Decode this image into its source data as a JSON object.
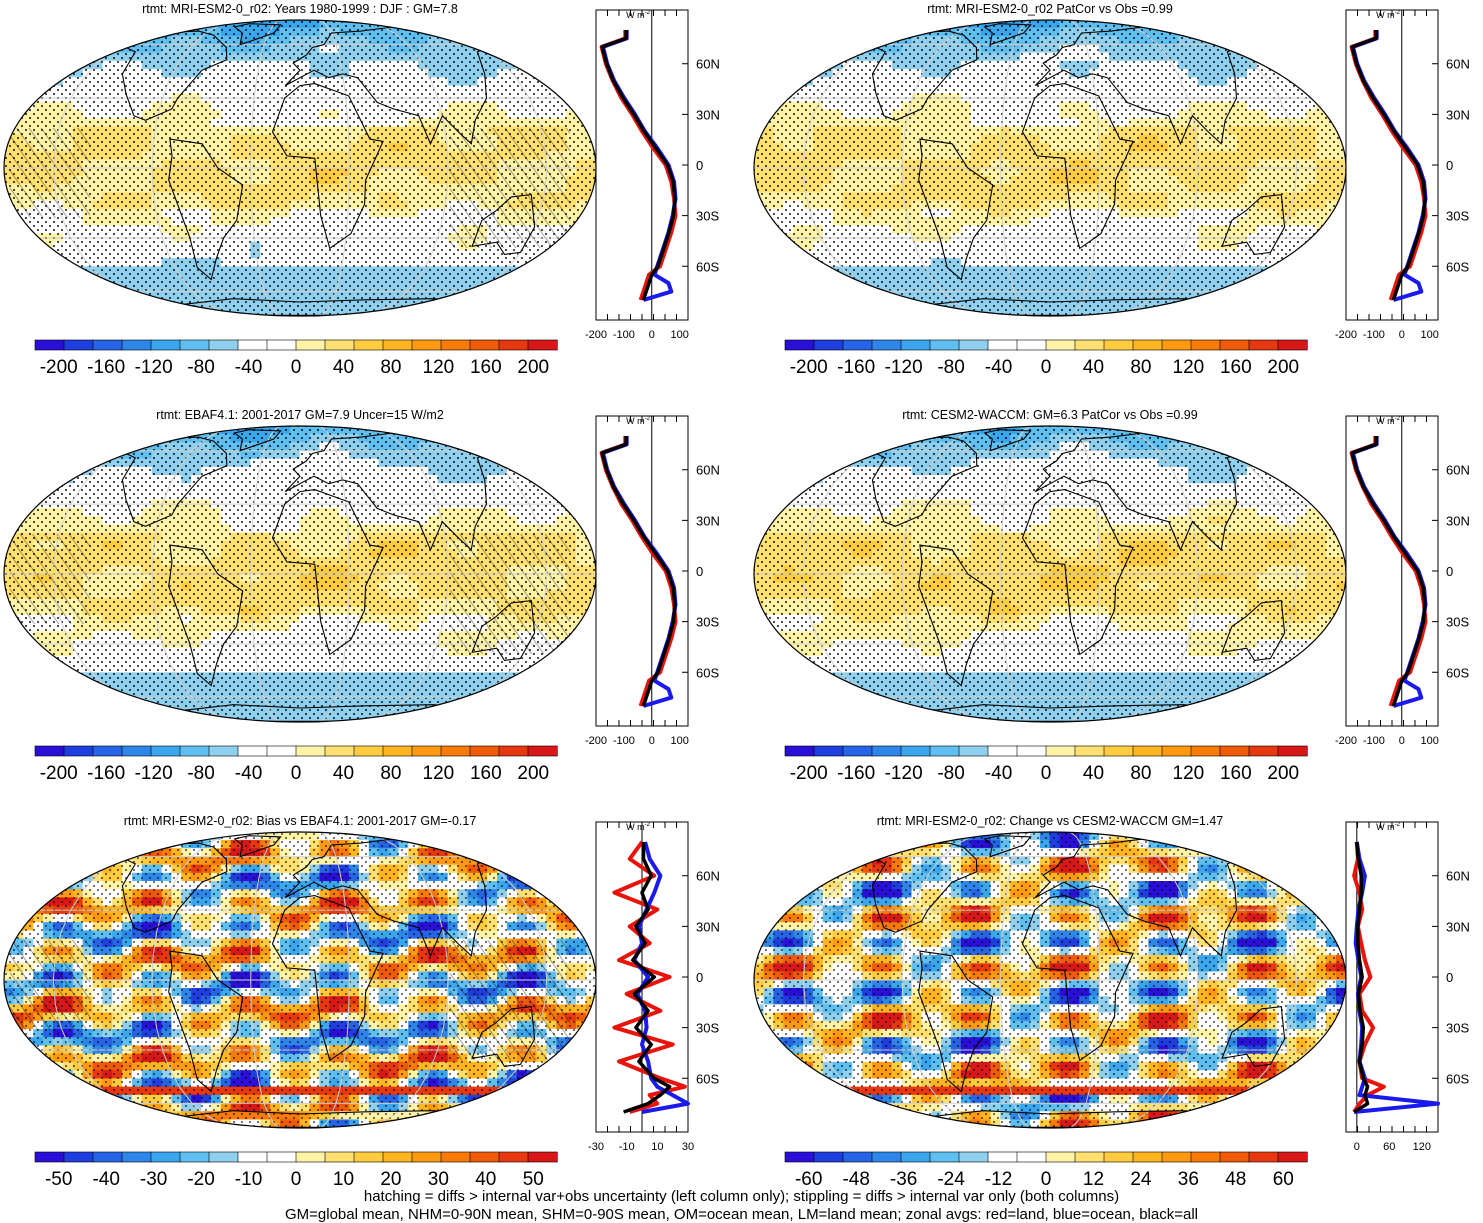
{
  "footer": {
    "line1": "hatching = diffs > internal var+obs uncertainty (left column only); stippling = diffs > internal var only (both columns)",
    "line2": "GM=global mean, NHM=0-90N mean, SHM=0-90S mean, OM=ocean mean, LM=land mean; zonal avgs: red=land, blue=ocean, black=all"
  },
  "colors": {
    "land_line": "#e8140c",
    "ocean_line": "#1a1aee",
    "all_line": "#000000"
  },
  "chart_data": [
    {
      "type": "heatmap",
      "title": "rtmt: MRI-ESM2-0_r02: Years 1980-1999 : DJF : GM=7.8",
      "colorbar": {
        "min": -220,
        "max": 220,
        "ticks": [
          -200,
          -160,
          -120,
          -80,
          -40,
          0,
          40,
          80,
          120,
          160,
          200
        ],
        "colors": [
          "#2a0fd8",
          "#1f3ee0",
          "#2564e6",
          "#2f86ea",
          "#3aa6ee",
          "#5ebff0",
          "#8ed0ee",
          "#ffffff",
          "#ffffff",
          "#fff3a8",
          "#ffe070",
          "#ffcc40",
          "#ffb420",
          "#ff9a10",
          "#f87a08",
          "#f05a08",
          "#e83810",
          "#d81818"
        ]
      },
      "map_scale": 220,
      "zonal": {
        "unit_label": "W m-2",
        "xlim": [
          -200,
          130
        ],
        "xticks": [
          "-200",
          "-100",
          "0",
          "100"
        ],
        "lat_ticks": [
          "60N",
          "30N",
          "0",
          "30S",
          "60S"
        ],
        "lat": [
          80,
          75,
          70,
          60,
          50,
          40,
          30,
          20,
          10,
          0,
          -10,
          -20,
          -30,
          -40,
          -50,
          -60,
          -65,
          -70,
          -75,
          -80
        ],
        "land": [
          -95,
          -95,
          -180,
          -165,
          -140,
          -110,
          -70,
          -35,
          5,
          50,
          70,
          80,
          85,
          70,
          50,
          30,
          -10,
          -20,
          -30,
          -40
        ],
        "ocean": [
          -90,
          -90,
          -175,
          -160,
          -135,
          -100,
          -60,
          -25,
          20,
          60,
          80,
          85,
          75,
          60,
          40,
          20,
          10,
          60,
          70,
          -30
        ],
        "all": [
          -92,
          -92,
          -178,
          -162,
          -138,
          -104,
          -64,
          -28,
          15,
          57,
          77,
          83,
          78,
          62,
          42,
          22,
          0,
          -10,
          -20,
          -30
        ]
      }
    },
    {
      "type": "heatmap",
      "title": "rtmt: MRI-ESM2-0_r02 PatCor vs Obs =0.99",
      "colorbar": {
        "min": -220,
        "max": 220,
        "ticks": [
          -200,
          -160,
          -120,
          -80,
          -40,
          0,
          40,
          80,
          120,
          160,
          200
        ],
        "colors": [
          "#2a0fd8",
          "#1f3ee0",
          "#2564e6",
          "#2f86ea",
          "#3aa6ee",
          "#5ebff0",
          "#8ed0ee",
          "#ffffff",
          "#ffffff",
          "#fff3a8",
          "#ffe070",
          "#ffcc40",
          "#ffb420",
          "#ff9a10",
          "#f87a08",
          "#f05a08",
          "#e83810",
          "#d81818"
        ]
      },
      "map_scale": 220,
      "zonal": {
        "unit_label": "W m-2",
        "xlim": [
          -200,
          130
        ],
        "xticks": [
          "-200",
          "-100",
          "0",
          "100"
        ],
        "lat_ticks": [
          "60N",
          "30N",
          "0",
          "30S",
          "60S"
        ],
        "lat": [
          80,
          75,
          70,
          60,
          50,
          40,
          30,
          20,
          10,
          0,
          -10,
          -20,
          -30,
          -40,
          -50,
          -60,
          -65,
          -70,
          -75,
          -80
        ],
        "land": [
          -95,
          -95,
          -180,
          -165,
          -140,
          -110,
          -70,
          -35,
          5,
          50,
          70,
          80,
          85,
          70,
          50,
          30,
          -10,
          -20,
          -30,
          -40
        ],
        "ocean": [
          -90,
          -90,
          -175,
          -160,
          -135,
          -100,
          -60,
          -25,
          20,
          60,
          80,
          85,
          75,
          60,
          40,
          20,
          10,
          60,
          70,
          -30
        ],
        "all": [
          -92,
          -92,
          -178,
          -162,
          -138,
          -104,
          -64,
          -28,
          15,
          57,
          77,
          83,
          78,
          62,
          42,
          22,
          0,
          -10,
          -20,
          -30
        ]
      }
    },
    {
      "type": "heatmap",
      "title": "rtmt: EBAF4.1: 2001-2017 GM=7.9 Uncer=15 W/m2",
      "colorbar": {
        "min": -220,
        "max": 220,
        "ticks": [
          -200,
          -160,
          -120,
          -80,
          -40,
          0,
          40,
          80,
          120,
          160,
          200
        ],
        "colors": [
          "#2a0fd8",
          "#1f3ee0",
          "#2564e6",
          "#2f86ea",
          "#3aa6ee",
          "#5ebff0",
          "#8ed0ee",
          "#ffffff",
          "#ffffff",
          "#fff3a8",
          "#ffe070",
          "#ffcc40",
          "#ffb420",
          "#ff9a10",
          "#f87a08",
          "#f05a08",
          "#e83810",
          "#d81818"
        ]
      },
      "map_scale": 220,
      "zonal": {
        "unit_label": "W m-2",
        "xlim": [
          -200,
          130
        ],
        "xticks": [
          "-200",
          "-100",
          "0",
          "100"
        ],
        "lat_ticks": [
          "60N",
          "30N",
          "0",
          "30S",
          "60S"
        ],
        "lat": [
          80,
          75,
          70,
          60,
          50,
          40,
          30,
          20,
          10,
          0,
          -10,
          -20,
          -30,
          -40,
          -50,
          -60,
          -65,
          -70,
          -75,
          -80
        ],
        "land": [
          -95,
          -95,
          -180,
          -165,
          -140,
          -110,
          -70,
          -35,
          5,
          50,
          70,
          80,
          85,
          70,
          50,
          30,
          -10,
          -20,
          -30,
          -40
        ],
        "ocean": [
          -90,
          -90,
          -175,
          -160,
          -135,
          -100,
          -60,
          -25,
          20,
          60,
          80,
          85,
          75,
          60,
          40,
          20,
          10,
          60,
          70,
          -30
        ],
        "all": [
          -92,
          -92,
          -178,
          -162,
          -138,
          -104,
          -64,
          -28,
          15,
          57,
          77,
          83,
          78,
          62,
          42,
          22,
          0,
          -10,
          -20,
          -30
        ]
      }
    },
    {
      "type": "heatmap",
      "title": "rtmt: CESM2-WACCM: GM=6.3 PatCor vs Obs =0.99",
      "colorbar": {
        "min": -220,
        "max": 220,
        "ticks": [
          -200,
          -160,
          -120,
          -80,
          -40,
          0,
          40,
          80,
          120,
          160,
          200
        ],
        "colors": [
          "#2a0fd8",
          "#1f3ee0",
          "#2564e6",
          "#2f86ea",
          "#3aa6ee",
          "#5ebff0",
          "#8ed0ee",
          "#ffffff",
          "#ffffff",
          "#fff3a8",
          "#ffe070",
          "#ffcc40",
          "#ffb420",
          "#ff9a10",
          "#f87a08",
          "#f05a08",
          "#e83810",
          "#d81818"
        ]
      },
      "map_scale": 220,
      "zonal": {
        "unit_label": "W m-2",
        "xlim": [
          -200,
          130
        ],
        "xticks": [
          "-200",
          "-100",
          "0",
          "100"
        ],
        "lat_ticks": [
          "60N",
          "30N",
          "0",
          "30S",
          "60S"
        ],
        "lat": [
          80,
          75,
          70,
          60,
          50,
          40,
          30,
          20,
          10,
          0,
          -10,
          -20,
          -30,
          -40,
          -50,
          -60,
          -65,
          -70,
          -75,
          -80
        ],
        "land": [
          -95,
          -95,
          -180,
          -165,
          -140,
          -110,
          -70,
          -35,
          5,
          50,
          70,
          80,
          85,
          70,
          50,
          30,
          -10,
          -20,
          -30,
          -40
        ],
        "ocean": [
          -90,
          -90,
          -175,
          -160,
          -135,
          -100,
          -60,
          -25,
          20,
          60,
          80,
          85,
          75,
          60,
          40,
          20,
          10,
          60,
          70,
          -30
        ],
        "all": [
          -92,
          -92,
          -178,
          -162,
          -138,
          -104,
          -64,
          -28,
          15,
          57,
          77,
          83,
          78,
          62,
          42,
          22,
          0,
          -10,
          -20,
          -30
        ]
      }
    },
    {
      "type": "heatmap",
      "title": "rtmt: MRI-ESM2-0_r02: Bias vs EBAF4.1: 2001-2017 GM=-0.17",
      "colorbar": {
        "min": -55,
        "max": 55,
        "ticks": [
          -50,
          -40,
          -30,
          -20,
          -10,
          0,
          10,
          20,
          30,
          40,
          50
        ],
        "colors": [
          "#2a0fd8",
          "#1f3ee0",
          "#2564e6",
          "#2f86ea",
          "#3aa6ee",
          "#5ebff0",
          "#8ed0ee",
          "#ffffff",
          "#ffffff",
          "#fff3a8",
          "#ffe070",
          "#ffcc40",
          "#ffb420",
          "#ff9a10",
          "#f87a08",
          "#f05a08",
          "#e83810",
          "#d81818"
        ]
      },
      "map_scale": 40,
      "zonal": {
        "unit_label": "W m-2",
        "xlim": [
          -30,
          30
        ],
        "xticks": [
          "-30",
          "-10",
          "10",
          "30"
        ],
        "lat_ticks": [
          "60N",
          "30N",
          "0",
          "30S",
          "60S"
        ],
        "lat": [
          80,
          70,
          60,
          50,
          40,
          30,
          20,
          10,
          0,
          -10,
          -20,
          -30,
          -40,
          -50,
          -60,
          -65,
          -70,
          -75,
          -80
        ],
        "land": [
          0,
          -8,
          8,
          -18,
          10,
          -8,
          5,
          -15,
          18,
          -10,
          12,
          -18,
          20,
          -15,
          12,
          28,
          5,
          10,
          -8
        ],
        "ocean": [
          2,
          5,
          12,
          8,
          3,
          -2,
          0,
          -5,
          4,
          -3,
          2,
          3,
          0,
          4,
          6,
          10,
          20,
          30,
          0
        ],
        "all": [
          1,
          1,
          6,
          0,
          4,
          -4,
          2,
          -6,
          8,
          -5,
          4,
          -4,
          6,
          -2,
          8,
          18,
          12,
          4,
          -12
        ]
      }
    },
    {
      "type": "heatmap",
      "title": "rtmt: MRI-ESM2-0_r02: Change vs CESM2-WACCM GM=1.47",
      "colorbar": {
        "min": -66,
        "max": 66,
        "ticks": [
          -60,
          -48,
          -36,
          -24,
          -12,
          0,
          12,
          24,
          36,
          48,
          60
        ],
        "colors": [
          "#2a0fd8",
          "#1f3ee0",
          "#2564e6",
          "#2f86ea",
          "#3aa6ee",
          "#5ebff0",
          "#8ed0ee",
          "#ffffff",
          "#ffffff",
          "#fff3a8",
          "#ffe070",
          "#ffcc40",
          "#ffb420",
          "#ff9a10",
          "#f87a08",
          "#f05a08",
          "#e83810",
          "#d81818"
        ]
      },
      "map_scale": 45,
      "zonal": {
        "unit_label": "W m-2",
        "xlim": [
          -20,
          150
        ],
        "xticks": [
          "0",
          "60",
          "120"
        ],
        "lat_ticks": [
          "60N",
          "30N",
          "0",
          "30S",
          "60S"
        ],
        "lat": [
          80,
          70,
          60,
          50,
          40,
          30,
          20,
          10,
          0,
          -10,
          -20,
          -30,
          -40,
          -50,
          -60,
          -65,
          -70,
          -75,
          -80
        ],
        "land": [
          0,
          2,
          -5,
          5,
          10,
          2,
          8,
          15,
          25,
          5,
          10,
          30,
          15,
          5,
          10,
          50,
          20,
          5,
          -5
        ],
        "ocean": [
          0,
          5,
          15,
          10,
          3,
          0,
          -2,
          3,
          8,
          2,
          5,
          10,
          8,
          5,
          15,
          10,
          5,
          150,
          -5
        ],
        "all": [
          0,
          3,
          8,
          8,
          5,
          2,
          2,
          5,
          10,
          3,
          6,
          12,
          10,
          5,
          12,
          20,
          15,
          20,
          -5
        ]
      }
    }
  ]
}
